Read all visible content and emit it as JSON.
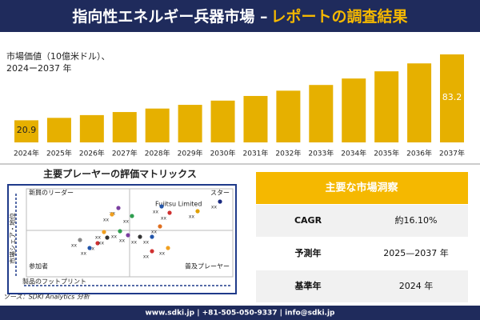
{
  "header": {
    "title_main": "指向性エネルギー兵器市場 –",
    "title_accent": "レポートの調査結果"
  },
  "chart_data": {
    "type": "bar",
    "subtitle_line1": "市場価値（10億米ドル）、",
    "subtitle_line2": "2024ー2037 年",
    "categories": [
      "2024年",
      "2025年",
      "2026年",
      "2027年",
      "2028年",
      "2029年",
      "2030年",
      "2031年",
      "2032年",
      "2033年",
      "2034年",
      "2035年",
      "2036年",
      "2037年"
    ],
    "values": [
      20.9,
      23.2,
      25.8,
      28.7,
      32.0,
      35.5,
      39.5,
      43.9,
      48.9,
      54.3,
      60.4,
      67.2,
      74.7,
      83.2
    ],
    "value_labels": [
      "20.9",
      null,
      null,
      null,
      null,
      null,
      null,
      null,
      null,
      null,
      null,
      null,
      null,
      "83.2"
    ],
    "color": "#e6b000"
  },
  "matrix": {
    "title": "主要プレーヤーの評価マトリックス",
    "top_left": "新興のリーダー",
    "top_right": "スター",
    "bottom_left": "参加者",
    "bottom_right": "普及プレーヤー",
    "y_axis": "市場シェア・地位",
    "x_axis": "製品のフットプリント",
    "highlight": "Fujitsu Limited",
    "point_labels": [
      "xx",
      "xx",
      "xx",
      "xx",
      "xx",
      "xx",
      "xx",
      "xx",
      "xx",
      "xx",
      "xx",
      "xx",
      "xx",
      "xx",
      "xx",
      "xx",
      "xx",
      "xx",
      "xx"
    ]
  },
  "table": {
    "title": "主要な市場洞察",
    "rows": [
      [
        "CAGR",
        "約16.10%"
      ],
      [
        "予測年",
        "2025—2037 年"
      ],
      [
        "基準年",
        "2024 年"
      ]
    ]
  },
  "source": "ソース：SDKI Analytics 分析",
  "footer": "www.sdki.jp | +81-505-050-9337 | info@sdki.jp"
}
